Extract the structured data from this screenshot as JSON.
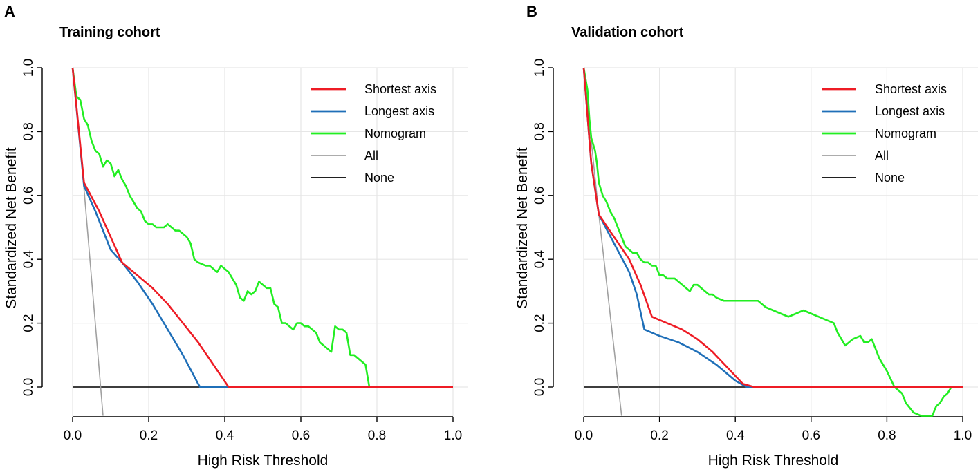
{
  "panels": [
    {
      "letter": "A",
      "title": "Training cohort",
      "chart_data": {
        "type": "line",
        "title": "Training cohort",
        "xlabel": "High Risk Threshold",
        "ylabel": "Standardized Net Benefit",
        "xlim": [
          0.0,
          1.0
        ],
        "ylim": [
          -0.09,
          1.0
        ],
        "xticks": [
          0.0,
          0.2,
          0.4,
          0.6,
          0.8,
          1.0
        ],
        "xtick_labels": [
          "0.0",
          "0.2",
          "0.4",
          "0.6",
          "0.8",
          "1.0"
        ],
        "yticks": [
          0.0,
          0.2,
          0.4,
          0.6,
          0.8,
          1.0
        ],
        "ytick_labels": [
          "0.0",
          "0.2",
          "0.4",
          "0.6",
          "0.8",
          "1.0"
        ],
        "grid": true,
        "legend_position": "top-right",
        "series": [
          {
            "name": "Shortest axis",
            "color": "#ee1c25",
            "x": [
              0.0,
              0.03,
              0.07,
              0.1,
              0.13,
              0.17,
              0.21,
              0.25,
              0.29,
              0.33,
              0.37,
              0.41,
              0.43,
              1.0
            ],
            "y": [
              1.0,
              0.64,
              0.55,
              0.47,
              0.39,
              0.35,
              0.31,
              0.26,
              0.2,
              0.14,
              0.07,
              0.0,
              0.0,
              0.0
            ]
          },
          {
            "name": "Longest axis",
            "color": "#1f6fb8",
            "x": [
              0.0,
              0.03,
              0.06,
              0.1,
              0.13,
              0.17,
              0.21,
              0.25,
              0.29,
              0.33,
              0.335,
              1.0
            ],
            "y": [
              1.0,
              0.63,
              0.55,
              0.43,
              0.39,
              0.33,
              0.26,
              0.18,
              0.1,
              0.01,
              0.0,
              0.0
            ]
          },
          {
            "name": "Nomogram",
            "color": "#22ee22",
            "x": [
              0.0,
              0.01,
              0.02,
              0.03,
              0.04,
              0.05,
              0.06,
              0.07,
              0.08,
              0.09,
              0.1,
              0.11,
              0.12,
              0.13,
              0.14,
              0.15,
              0.16,
              0.17,
              0.18,
              0.19,
              0.2,
              0.21,
              0.22,
              0.24,
              0.25,
              0.26,
              0.27,
              0.28,
              0.29,
              0.3,
              0.31,
              0.32,
              0.33,
              0.35,
              0.36,
              0.37,
              0.38,
              0.39,
              0.4,
              0.41,
              0.42,
              0.43,
              0.44,
              0.45,
              0.46,
              0.47,
              0.48,
              0.49,
              0.5,
              0.51,
              0.52,
              0.53,
              0.54,
              0.55,
              0.56,
              0.57,
              0.58,
              0.59,
              0.6,
              0.61,
              0.62,
              0.63,
              0.64,
              0.65,
              0.66,
              0.67,
              0.68,
              0.69,
              0.7,
              0.71,
              0.72,
              0.73,
              0.74,
              0.75,
              0.76,
              0.77,
              0.78,
              0.79,
              0.8,
              0.81,
              0.82,
              0.83,
              0.84,
              0.85,
              0.86,
              0.87,
              0.88,
              0.885,
              0.9,
              0.95,
              1.0
            ],
            "y": [
              1.0,
              0.91,
              0.9,
              0.84,
              0.82,
              0.77,
              0.74,
              0.73,
              0.69,
              0.71,
              0.7,
              0.66,
              0.68,
              0.65,
              0.63,
              0.6,
              0.58,
              0.56,
              0.55,
              0.52,
              0.51,
              0.51,
              0.5,
              0.5,
              0.51,
              0.5,
              0.49,
              0.49,
              0.48,
              0.47,
              0.45,
              0.4,
              0.39,
              0.38,
              0.38,
              0.37,
              0.36,
              0.38,
              0.37,
              0.36,
              0.34,
              0.32,
              0.28,
              0.27,
              0.3,
              0.29,
              0.3,
              0.33,
              0.32,
              0.31,
              0.31,
              0.26,
              0.25,
              0.2,
              0.2,
              0.19,
              0.18,
              0.2,
              0.2,
              0.19,
              0.19,
              0.18,
              0.17,
              0.14,
              0.13,
              0.12,
              0.11,
              0.19,
              0.18,
              0.18,
              0.17,
              0.1,
              0.1,
              0.09,
              0.08,
              0.07,
              0.0,
              0.0,
              0.0,
              0.0,
              0.0,
              0.0,
              0.0,
              0.0,
              0.0,
              0.0,
              0.0,
              0.0,
              0.0,
              0.0,
              0.0
            ]
          },
          {
            "name": "All",
            "color": "#a0a0a0",
            "x": [
              0.0,
              0.03,
              0.08
            ],
            "y": [
              1.0,
              0.62,
              -0.09
            ]
          },
          {
            "name": "None",
            "color": "#000000",
            "x": [
              0.0,
              1.0
            ],
            "y": [
              0.0,
              0.0
            ]
          }
        ]
      }
    },
    {
      "letter": "B",
      "title": "Validation cohort",
      "chart_data": {
        "type": "line",
        "title": "Validation cohort",
        "xlabel": "High Risk Threshold",
        "ylabel": "Standardized Net Benefit",
        "xlim": [
          0.0,
          1.0
        ],
        "ylim": [
          -0.09,
          1.0
        ],
        "xticks": [
          0.0,
          0.2,
          0.4,
          0.6,
          0.8,
          1.0
        ],
        "xtick_labels": [
          "0.0",
          "0.2",
          "0.4",
          "0.6",
          "0.8",
          "1.0"
        ],
        "yticks": [
          0.0,
          0.2,
          0.4,
          0.6,
          0.8,
          1.0
        ],
        "ytick_labels": [
          "0.0",
          "0.2",
          "0.4",
          "0.6",
          "0.8",
          "1.0"
        ],
        "grid": true,
        "legend_position": "top-right",
        "series": [
          {
            "name": "Shortest axis",
            "color": "#ee1c25",
            "x": [
              0.0,
              0.02,
              0.04,
              0.08,
              0.12,
              0.15,
              0.18,
              0.22,
              0.26,
              0.3,
              0.34,
              0.38,
              0.42,
              0.45,
              1.0
            ],
            "y": [
              1.0,
              0.7,
              0.54,
              0.47,
              0.4,
              0.32,
              0.22,
              0.2,
              0.18,
              0.15,
              0.11,
              0.06,
              0.01,
              0.0,
              0.0
            ]
          },
          {
            "name": "Longest axis",
            "color": "#1f6fb8",
            "x": [
              0.0,
              0.02,
              0.04,
              0.08,
              0.12,
              0.14,
              0.16,
              0.2,
              0.25,
              0.3,
              0.35,
              0.4,
              0.43,
              1.0
            ],
            "y": [
              1.0,
              0.7,
              0.54,
              0.45,
              0.36,
              0.29,
              0.18,
              0.16,
              0.14,
              0.11,
              0.07,
              0.02,
              0.0,
              0.0
            ]
          },
          {
            "name": "Nomogram",
            "color": "#22ee22",
            "x": [
              0.0,
              0.01,
              0.015,
              0.02,
              0.03,
              0.035,
              0.04,
              0.05,
              0.06,
              0.07,
              0.08,
              0.09,
              0.1,
              0.11,
              0.12,
              0.13,
              0.14,
              0.15,
              0.16,
              0.17,
              0.18,
              0.19,
              0.2,
              0.21,
              0.22,
              0.23,
              0.24,
              0.25,
              0.26,
              0.27,
              0.28,
              0.29,
              0.3,
              0.31,
              0.32,
              0.33,
              0.34,
              0.35,
              0.37,
              0.39,
              0.41,
              0.43,
              0.45,
              0.46,
              0.48,
              0.5,
              0.52,
              0.54,
              0.56,
              0.58,
              0.6,
              0.62,
              0.64,
              0.66,
              0.67,
              0.69,
              0.71,
              0.73,
              0.74,
              0.75,
              0.76,
              0.77,
              0.78,
              0.8,
              0.82,
              0.84,
              0.85,
              0.87,
              0.89,
              0.9,
              0.92,
              0.93,
              0.94,
              0.95,
              0.96,
              0.97,
              0.98,
              0.99
            ],
            "y": [
              1.0,
              0.93,
              0.84,
              0.78,
              0.74,
              0.7,
              0.64,
              0.6,
              0.58,
              0.55,
              0.53,
              0.5,
              0.47,
              0.44,
              0.43,
              0.42,
              0.42,
              0.4,
              0.39,
              0.39,
              0.38,
              0.38,
              0.35,
              0.35,
              0.34,
              0.34,
              0.34,
              0.33,
              0.32,
              0.31,
              0.3,
              0.32,
              0.32,
              0.31,
              0.3,
              0.29,
              0.29,
              0.28,
              0.27,
              0.27,
              0.27,
              0.27,
              0.27,
              0.27,
              0.25,
              0.24,
              0.23,
              0.22,
              0.23,
              0.24,
              0.23,
              0.22,
              0.21,
              0.2,
              0.17,
              0.13,
              0.15,
              0.16,
              0.14,
              0.14,
              0.15,
              0.12,
              0.09,
              0.05,
              0.0,
              -0.02,
              -0.05,
              -0.08,
              -0.09,
              -0.09,
              -0.09,
              -0.06,
              -0.05,
              -0.03,
              -0.02,
              0.0,
              0.0,
              0.0
            ]
          },
          {
            "name": "All",
            "color": "#a0a0a0",
            "x": [
              0.0,
              0.04,
              0.1
            ],
            "y": [
              1.0,
              0.54,
              -0.09
            ]
          },
          {
            "name": "None",
            "color": "#000000",
            "x": [
              0.0,
              1.0
            ],
            "y": [
              0.0,
              0.0
            ]
          }
        ]
      }
    }
  ]
}
